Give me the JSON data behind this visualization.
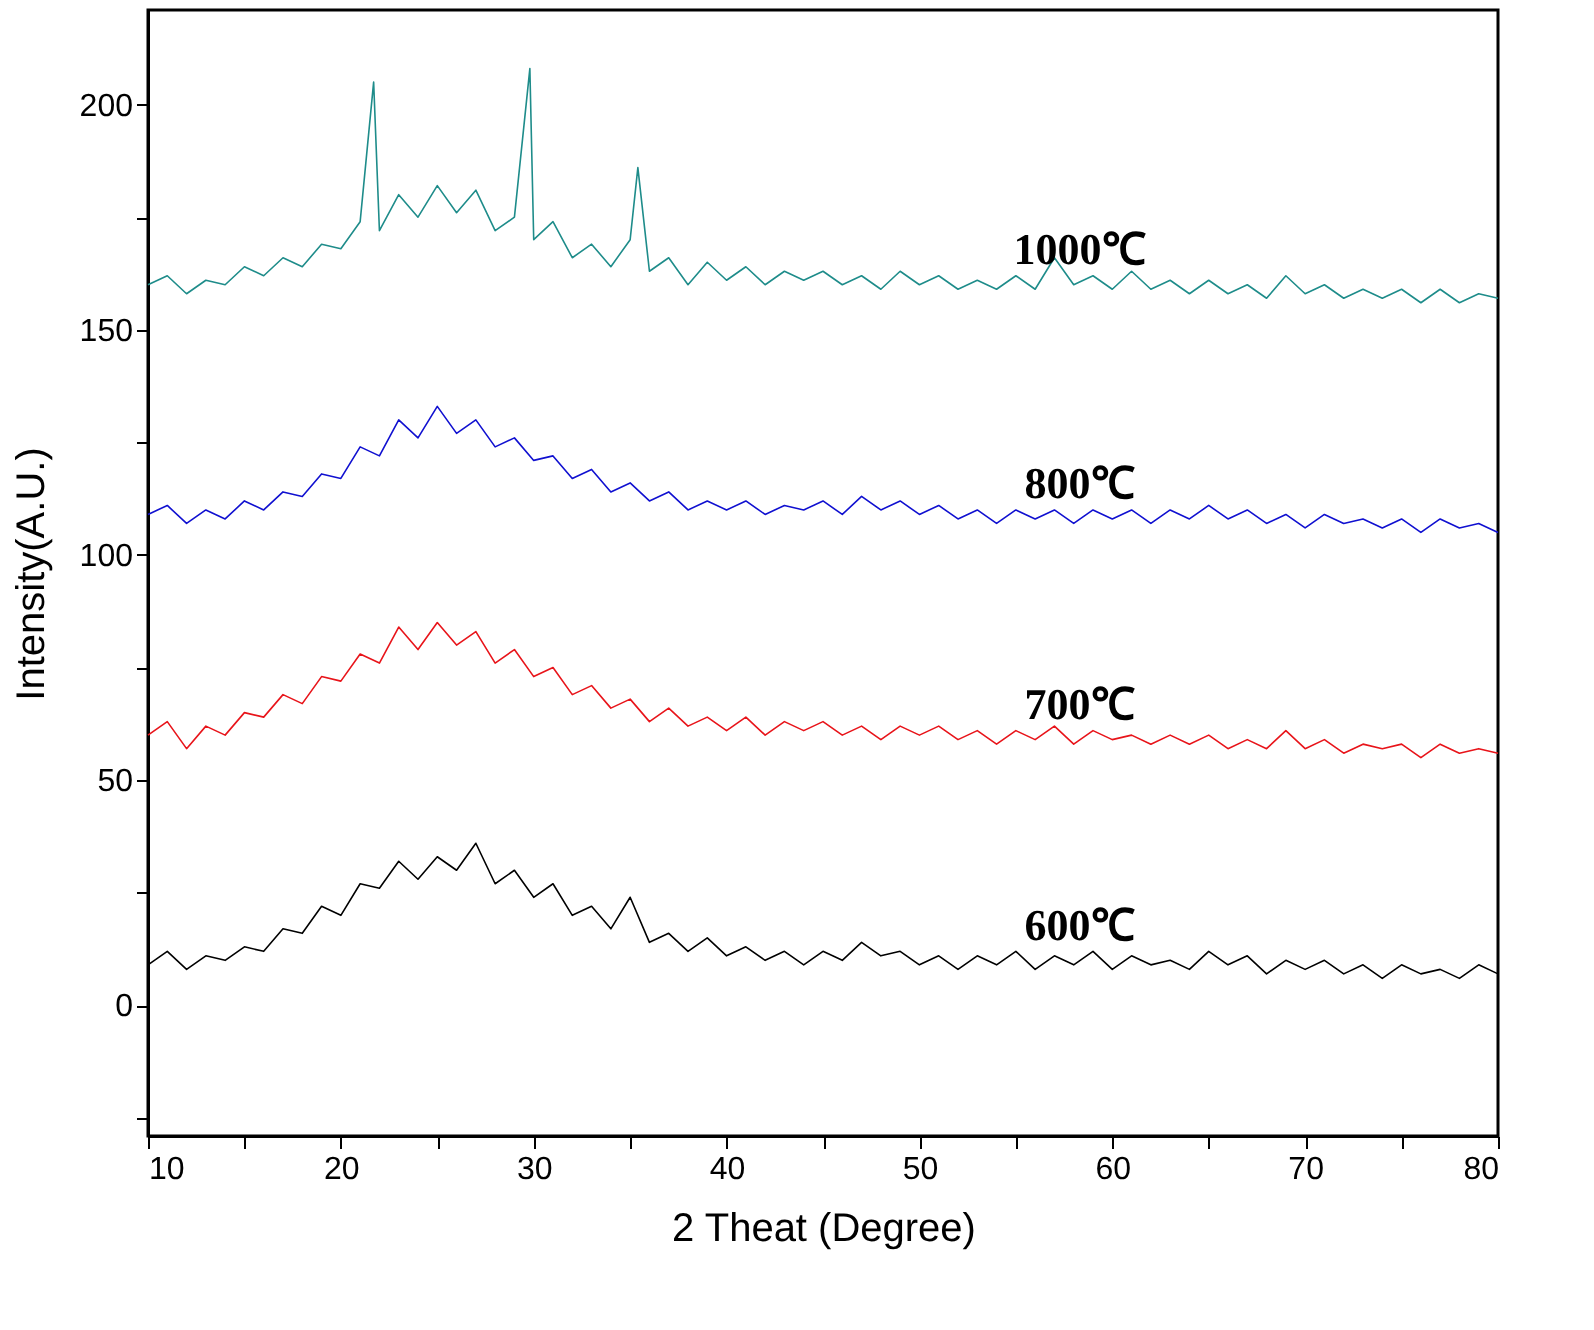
{
  "chart_data": {
    "type": "line",
    "xlabel": "2 Theat (Degree)",
    "ylabel": "Intensity(A.U.)",
    "x": [
      10,
      11,
      12,
      13,
      14,
      15,
      16,
      17,
      18,
      19,
      20,
      21,
      22,
      23,
      24,
      25,
      26,
      27,
      28,
      29,
      30,
      31,
      32,
      33,
      34,
      35,
      36,
      37,
      38,
      39,
      40,
      41,
      42,
      43,
      44,
      45,
      46,
      47,
      48,
      49,
      50,
      51,
      52,
      53,
      54,
      55,
      56,
      57,
      58,
      59,
      60,
      61,
      62,
      63,
      64,
      65,
      66,
      67,
      68,
      69,
      70,
      71,
      72,
      73,
      74,
      75,
      76,
      77,
      78,
      79,
      80
    ],
    "xlim": [
      10,
      80
    ],
    "ylim": [
      -29,
      221
    ],
    "xticks": [
      10,
      {
        "value": 15,
        "label": null
      },
      20,
      {
        "value": 25,
        "label": null
      },
      30,
      {
        "value": 35,
        "label": null
      },
      40,
      {
        "value": 45,
        "label": null
      },
      50,
      {
        "value": 55,
        "label": null
      },
      60,
      {
        "value": 65,
        "label": null
      },
      70,
      {
        "value": 75,
        "label": null
      },
      80
    ],
    "yticks": [
      {
        "value": -25,
        "label": null
      },
      0,
      {
        "value": 25,
        "label": null
      },
      50,
      {
        "value": 75,
        "label": null
      },
      100,
      {
        "value": 125,
        "label": null
      },
      150,
      {
        "value": 175,
        "label": null
      },
      200
    ],
    "grid": false,
    "line_style": "solid",
    "marker": "none",
    "series": [
      {
        "name": "600℃",
        "color": "#000000",
        "values": [
          9,
          12,
          8,
          11,
          10,
          13,
          12,
          17,
          16,
          22,
          20,
          27,
          26,
          32,
          28,
          33,
          30,
          36,
          27,
          30,
          24,
          27,
          20,
          22,
          17,
          24,
          14,
          16,
          12,
          15,
          11,
          13,
          10,
          12,
          9,
          12,
          10,
          14,
          11,
          12,
          9,
          11,
          8,
          11,
          9,
          12,
          8,
          11,
          9,
          12,
          8,
          11,
          9,
          10,
          8,
          12,
          9,
          11,
          7,
          10,
          8,
          10,
          7,
          9,
          6,
          9,
          7,
          8,
          6,
          9,
          7
        ]
      },
      {
        "name": "700℃",
        "color": "#e8141a",
        "values": [
          60,
          63,
          57,
          62,
          60,
          65,
          64,
          69,
          67,
          73,
          72,
          78,
          76,
          84,
          79,
          85,
          80,
          83,
          76,
          79,
          73,
          75,
          69,
          71,
          66,
          68,
          63,
          66,
          62,
          64,
          61,
          64,
          60,
          63,
          61,
          63,
          60,
          62,
          59,
          62,
          60,
          62,
          59,
          61,
          58,
          61,
          59,
          62,
          58,
          61,
          59,
          60,
          58,
          60,
          58,
          60,
          57,
          59,
          57,
          61,
          57,
          59,
          56,
          58,
          57,
          58,
          55,
          58,
          56,
          57,
          56
        ]
      },
      {
        "name": "800℃",
        "color": "#1010d0",
        "values": [
          109,
          111,
          107,
          110,
          108,
          112,
          110,
          114,
          113,
          118,
          117,
          124,
          122,
          130,
          126,
          133,
          127,
          130,
          124,
          126,
          121,
          122,
          117,
          119,
          114,
          116,
          112,
          114,
          110,
          112,
          110,
          112,
          109,
          111,
          110,
          112,
          109,
          113,
          110,
          112,
          109,
          111,
          108,
          110,
          107,
          110,
          108,
          110,
          107,
          110,
          108,
          110,
          107,
          110,
          108,
          111,
          108,
          110,
          107,
          109,
          106,
          109,
          107,
          108,
          106,
          108,
          105,
          108,
          106,
          107,
          105
        ]
      },
      {
        "name": "1000℃",
        "color": "#1e8c8a",
        "x": [
          10,
          11,
          12,
          13,
          14,
          15,
          16,
          17,
          18,
          19,
          20,
          21,
          21.7,
          22,
          23,
          24,
          25,
          26,
          27,
          28,
          29,
          29.8,
          30,
          31,
          32,
          33,
          34,
          35,
          35.4,
          36,
          37,
          38,
          39,
          40,
          41,
          42,
          43,
          44,
          45,
          46,
          47,
          48,
          49,
          50,
          51,
          52,
          53,
          54,
          55,
          56,
          57,
          58,
          59,
          60,
          61,
          62,
          63,
          64,
          65,
          66,
          67,
          68,
          69,
          70,
          71,
          72,
          73,
          74,
          75,
          76,
          77,
          78,
          79,
          80
        ],
        "values": [
          160,
          162,
          158,
          161,
          160,
          164,
          162,
          166,
          164,
          169,
          168,
          174,
          205,
          172,
          180,
          175,
          182,
          176,
          181,
          172,
          175,
          208,
          170,
          174,
          166,
          169,
          164,
          170,
          186,
          163,
          166,
          160,
          165,
          161,
          164,
          160,
          163,
          161,
          163,
          160,
          162,
          159,
          163,
          160,
          162,
          159,
          161,
          159,
          162,
          159,
          166,
          160,
          162,
          159,
          163,
          159,
          161,
          158,
          161,
          158,
          160,
          157,
          162,
          158,
          160,
          157,
          159,
          157,
          159,
          156,
          159,
          156,
          158,
          157
        ]
      }
    ]
  }
}
